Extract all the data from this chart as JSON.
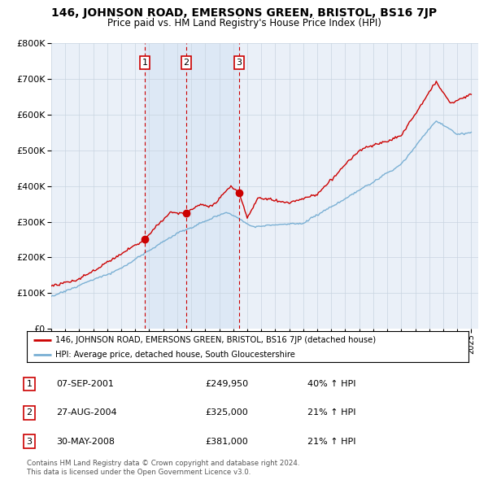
{
  "title": "146, JOHNSON ROAD, EMERSONS GREEN, BRISTOL, BS16 7JP",
  "subtitle": "Price paid vs. HM Land Registry's House Price Index (HPI)",
  "transactions": [
    {
      "num": 1,
      "date": "07-SEP-2001",
      "date_x": 2001.68,
      "price": 249950,
      "pct": "40%",
      "dir": "↑"
    },
    {
      "num": 2,
      "date": "27-AUG-2004",
      "date_x": 2004.65,
      "price": 325000,
      "pct": "21%",
      "dir": "↑"
    },
    {
      "num": 3,
      "date": "30-MAY-2008",
      "date_x": 2008.41,
      "price": 381000,
      "pct": "21%",
      "dir": "↑"
    }
  ],
  "legend_property": "146, JOHNSON ROAD, EMERSONS GREEN, BRISTOL, BS16 7JP (detached house)",
  "legend_hpi": "HPI: Average price, detached house, South Gloucestershire",
  "footer": "Contains HM Land Registry data © Crown copyright and database right 2024.\nThis data is licensed under the Open Government Licence v3.0.",
  "ylim": [
    0,
    800000
  ],
  "xlim": [
    1995,
    2025.5
  ],
  "property_color": "#cc0000",
  "hpi_color": "#7ab0d4",
  "shade_color": "#dde8f5",
  "bg_color": "#eaf0f8",
  "grid_color": "#c8d4e0"
}
